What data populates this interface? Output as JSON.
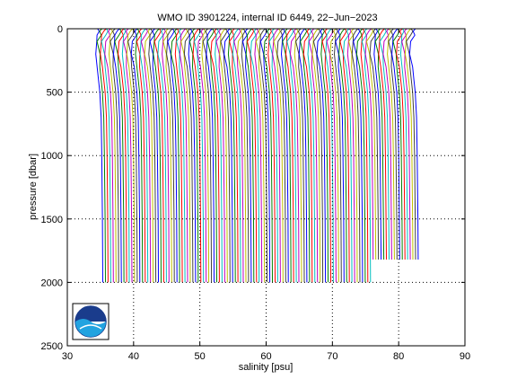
{
  "chart_data": {
    "type": "line",
    "title": "WMO ID 3901224, internal ID 6449, 22−Jun−2023",
    "xlabel": "salinity [psu]",
    "ylabel": "pressure [dbar]",
    "xlim": [
      30,
      90
    ],
    "ylim": [
      0,
      2500
    ],
    "y_reversed": true,
    "grid": true,
    "x_ticks": [
      30,
      40,
      50,
      60,
      70,
      80,
      90
    ],
    "x_tick_labels": [
      "30",
      "40",
      "50",
      "60",
      "70",
      "80",
      "90"
    ],
    "y_ticks": [
      0,
      500,
      1000,
      1500,
      2000,
      2500
    ],
    "y_tick_labels": [
      "0",
      "500",
      "1000",
      "1500",
      "2000",
      "2500"
    ],
    "series_colors": [
      "#0000ff",
      "#008000",
      "#ff0000",
      "#00bfbf",
      "#bf00bf",
      "#bfbf00",
      "#404040"
    ],
    "profile_offset_start": 34.6,
    "profile_offset_step": 0.4,
    "profile_count": 120,
    "profile_shape": {
      "pressure": [
        0,
        20,
        50,
        100,
        200,
        300,
        400,
        500,
        700,
        1000,
        1500,
        2000
      ],
      "salinity_anomaly": [
        0.2,
        0.1,
        0.0,
        -0.4,
        -0.3,
        -0.1,
        0.1,
        0.3,
        0.5,
        0.6,
        0.7,
        0.75
      ]
    },
    "profile_max_pressure": {
      "deep_until_x": 75,
      "mid_until_x": 83.5,
      "deep": 2000,
      "mid": 1820,
      "shallow": 1000
    }
  },
  "logo": {
    "text": "NOAA",
    "name": "noaa-logo"
  }
}
